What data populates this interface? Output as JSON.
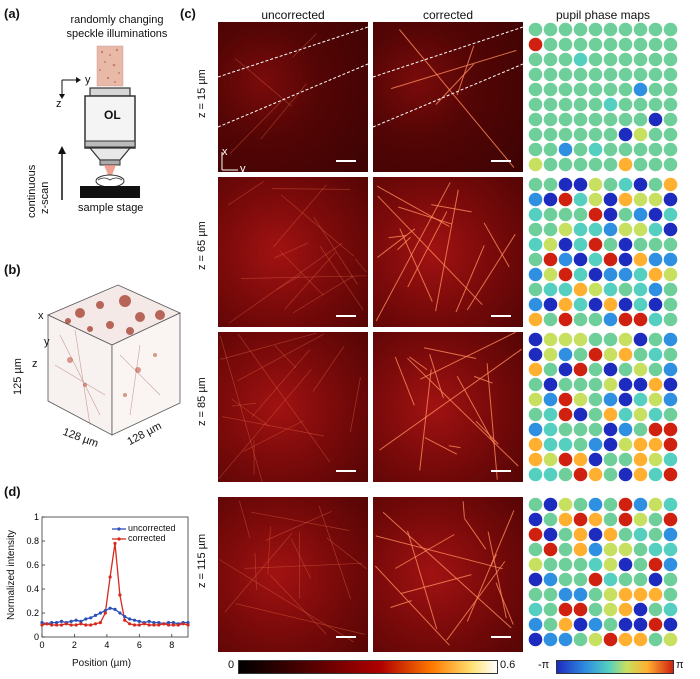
{
  "panel_a": {
    "label": "(a)",
    "title_line1": "randomly changing",
    "title_line2": "speckle illuminations",
    "axis_y": "y",
    "axis_z": "z",
    "objective": "OL",
    "scan_line1": "continuous",
    "scan_line2": "z-scan",
    "stage": "sample stage"
  },
  "panel_b": {
    "label": "(b)",
    "axis_x": "x",
    "axis_y": "y",
    "axis_z": "z",
    "dim_z": "125 µm",
    "dim_x": "128 µm",
    "dim_y": "128 µm"
  },
  "panel_c": {
    "label": "(c)",
    "col_uncorrected": "uncorrected",
    "col_corrected": "corrected",
    "col_pupil": "pupil phase maps",
    "axis_x": "x",
    "axis_y": "y",
    "rows": [
      "z = 15 µm",
      "z = 65 µm",
      "z = 85 µm",
      "z = 115 µm"
    ],
    "cbar_left_min": "0",
    "cbar_left_max": "0.6",
    "cbar_right_min": "-π",
    "cbar_right_max": "π"
  },
  "panel_d": {
    "label": "(d)",
    "legend_uncorrected": "uncorrected",
    "legend_corrected": "corrected",
    "colors": {
      "uncorrected": "#2b4fb8",
      "corrected": "#d62a1e"
    }
  },
  "chart_data": {
    "type": "line",
    "xlabel": "Position (µm)",
    "ylabel": "Normalized intensity",
    "xlim": [
      0,
      9
    ],
    "ylim": [
      0,
      1
    ],
    "xticks": [
      "0",
      "2",
      "4",
      "6",
      "8"
    ],
    "yticks": [
      "0",
      "0.2",
      "0.4",
      "0.6",
      "0.8",
      "1"
    ],
    "legend": "top-right",
    "series": [
      {
        "name": "uncorrected",
        "x": [
          0,
          0.3,
          0.6,
          0.9,
          1.2,
          1.5,
          1.8,
          2.1,
          2.4,
          2.7,
          3.0,
          3.3,
          3.6,
          3.9,
          4.2,
          4.5,
          4.8,
          5.1,
          5.4,
          5.7,
          6.0,
          6.3,
          6.6,
          6.9,
          7.2,
          7.5,
          7.8,
          8.1,
          8.4,
          8.7,
          9.0
        ],
        "y": [
          0.12,
          0.11,
          0.12,
          0.12,
          0.13,
          0.12,
          0.13,
          0.14,
          0.13,
          0.15,
          0.16,
          0.18,
          0.2,
          0.22,
          0.24,
          0.23,
          0.2,
          0.17,
          0.15,
          0.14,
          0.13,
          0.12,
          0.13,
          0.12,
          0.12,
          0.11,
          0.12,
          0.12,
          0.11,
          0.12,
          0.12
        ]
      },
      {
        "name": "corrected",
        "x": [
          0,
          0.3,
          0.6,
          0.9,
          1.2,
          1.5,
          1.8,
          2.1,
          2.4,
          2.7,
          3.0,
          3.3,
          3.6,
          3.9,
          4.2,
          4.5,
          4.8,
          5.1,
          5.4,
          5.7,
          6.0,
          6.3,
          6.6,
          6.9,
          7.2,
          7.5,
          7.8,
          8.1,
          8.4,
          8.7,
          9.0
        ],
        "y": [
          0.1,
          0.11,
          0.1,
          0.1,
          0.1,
          0.11,
          0.1,
          0.1,
          0.11,
          0.1,
          0.1,
          0.11,
          0.12,
          0.2,
          0.5,
          0.78,
          0.35,
          0.14,
          0.11,
          0.1,
          0.1,
          0.11,
          0.1,
          0.1,
          0.1,
          0.11,
          0.1,
          0.1,
          0.1,
          0.11,
          0.1
        ]
      }
    ]
  }
}
